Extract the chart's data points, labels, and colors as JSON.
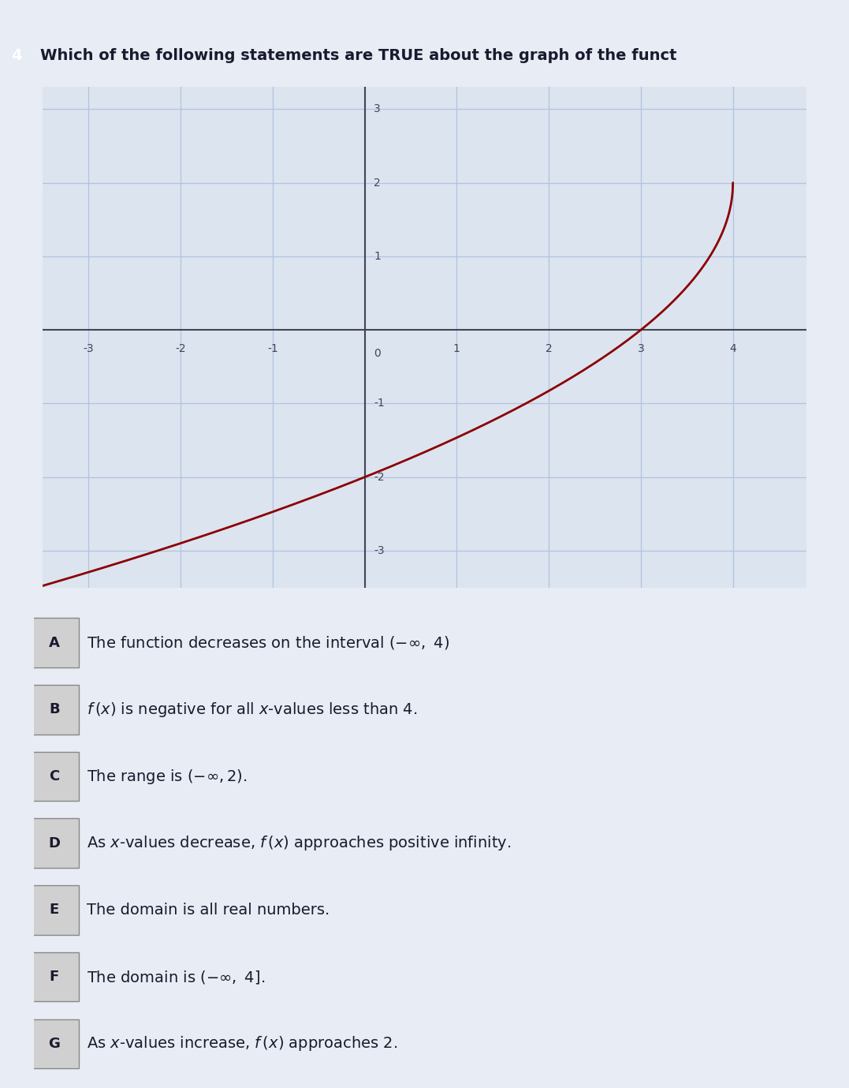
{
  "title": "Which of the following statements are TRUE about the graph of the funct",
  "title_fontsize": 14,
  "curve_color": "#8B0000",
  "curve_linewidth": 2.0,
  "grid_color": "#b0c4de",
  "axis_color": "#444455",
  "bg_color": "#e8ecf4",
  "plot_bg": "#dce4f0",
  "xlim": [
    -3.5,
    4.8
  ],
  "ylim": [
    -3.5,
    3.3
  ],
  "xticks": [
    -3,
    -2,
    -1,
    0,
    1,
    2,
    3,
    4
  ],
  "yticks": [
    -3,
    -2,
    -1,
    1,
    2,
    3
  ],
  "tick_fontsize": 10,
  "options": [
    {
      "label": "A",
      "text": "The function decreases on the interval $(-\\infty,\\ 4)$"
    },
    {
      "label": "B",
      "text": "$f\\,(x)$ is negative for all $x$-values less than 4."
    },
    {
      "label": "C",
      "text": "The range is $(-\\infty, 2)$."
    },
    {
      "label": "D",
      "text": "As $x$-values decrease, $f\\,(x)$ approaches positive infinity."
    },
    {
      "label": "E",
      "text": "The domain is all real numbers."
    },
    {
      "label": "F",
      "text": "The domain is $(-\\infty,\\ 4]$."
    },
    {
      "label": "G",
      "text": "As $x$-values increase, $f\\,(x)$ approaches 2."
    }
  ],
  "option_fontsize": 14,
  "option_label_fontsize": 13,
  "text_color": "#1a1a2e",
  "label_box_color": "#d0d0d0",
  "label_box_edge": "#888888"
}
